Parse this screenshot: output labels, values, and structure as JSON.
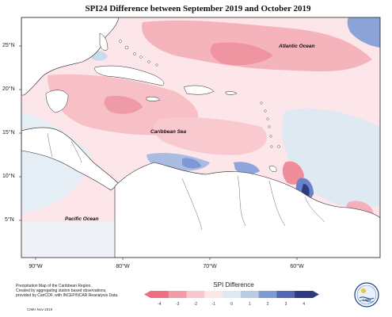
{
  "title": "SPI24 Difference between September 2019 and October 2019",
  "lat_labels": [
    "25°N",
    "20°N",
    "15°N",
    "10°N",
    "5°N"
  ],
  "lon_labels": [
    "90°W",
    "80°W",
    "70°W",
    "60°W"
  ],
  "places": {
    "atlantic": "Atlantic Ocean",
    "caribbean": "Caribbean Sea",
    "pacific": "Pacific Ocean"
  },
  "legend": {
    "title": "SPI Difference",
    "ticks": [
      "-4",
      "-3",
      "-2",
      "-1",
      "0",
      "1",
      "2",
      "3",
      "4"
    ],
    "colors": [
      "#ee6f80",
      "#f39ba6",
      "#f8c6cc",
      "#fde6ea",
      "#dfe9f1",
      "#b8cce6",
      "#7f9bd6",
      "#5268b5",
      "#2f3b80"
    ]
  },
  "notes": {
    "line1": "Precipitation Map of the Caribbean Region.",
    "line2": "Created by aggregating station based observations,",
    "line3": "provided by CariCOF, with INCEP/NCAR Reanalysis Data.",
    "credit": "CIMH Nov-2019"
  },
  "logo": {
    "label": "CIMH",
    "icon": "cimh-logo-icon"
  },
  "colors": {
    "land": "#ffffff",
    "neutral_ocean": "#fde6ea",
    "dry": "#f3a9b3",
    "dry_strong": "#ec8795",
    "wet": "#c9dcec",
    "wet_strong": "#6f88cf",
    "wet_darkest": "#2f3b80"
  }
}
